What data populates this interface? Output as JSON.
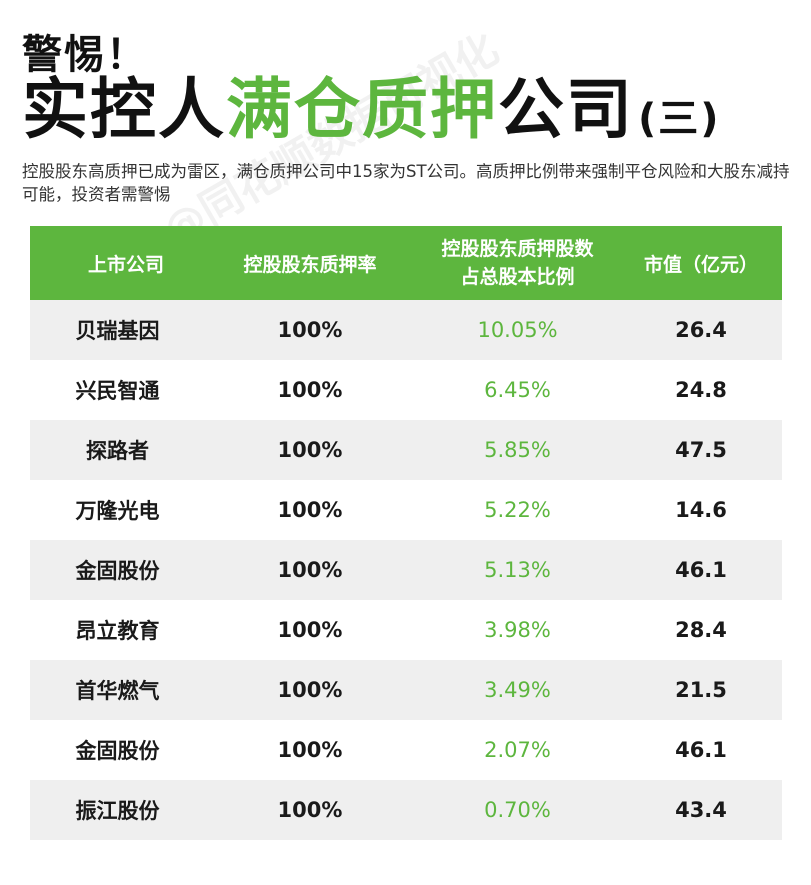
{
  "alert": "警惕！",
  "headline": {
    "part1": "实控人",
    "part2": "满仓质押",
    "part3": "公司",
    "part4": "(三)"
  },
  "description": "控股股东高质押已成为雷区，满仓质押公司中15家为ST公司。高质押比例带来强制平仓风险和大股东减持可能，投资者需警惕",
  "watermark": "@同花顺数据可视化",
  "colors": {
    "accent": "#5db63e",
    "row_alt": "#efefef"
  },
  "table": {
    "headers": {
      "company": "上市公司",
      "pledge_rate": "控股股东质押率",
      "pledge_ratio_line1": "控股股东质押股数",
      "pledge_ratio_line2": "占总股本比例",
      "market_cap": "市值（亿元）"
    },
    "rows": [
      {
        "company": "贝瑞基因",
        "pledge_rate": "100%",
        "ratio": "10.05%",
        "cap": "26.4"
      },
      {
        "company": "兴民智通",
        "pledge_rate": "100%",
        "ratio": "6.45%",
        "cap": "24.8"
      },
      {
        "company": "探路者",
        "pledge_rate": "100%",
        "ratio": "5.85%",
        "cap": "47.5"
      },
      {
        "company": "万隆光电",
        "pledge_rate": "100%",
        "ratio": "5.22%",
        "cap": "14.6"
      },
      {
        "company": "金固股份",
        "pledge_rate": "100%",
        "ratio": "5.13%",
        "cap": "46.1"
      },
      {
        "company": "昂立教育",
        "pledge_rate": "100%",
        "ratio": "3.98%",
        "cap": "28.4"
      },
      {
        "company": "首华燃气",
        "pledge_rate": "100%",
        "ratio": "3.49%",
        "cap": "21.5"
      },
      {
        "company": "金固股份",
        "pledge_rate": "100%",
        "ratio": "2.07%",
        "cap": "46.1"
      },
      {
        "company": "振江股份",
        "pledge_rate": "100%",
        "ratio": "0.70%",
        "cap": "43.4"
      }
    ]
  }
}
